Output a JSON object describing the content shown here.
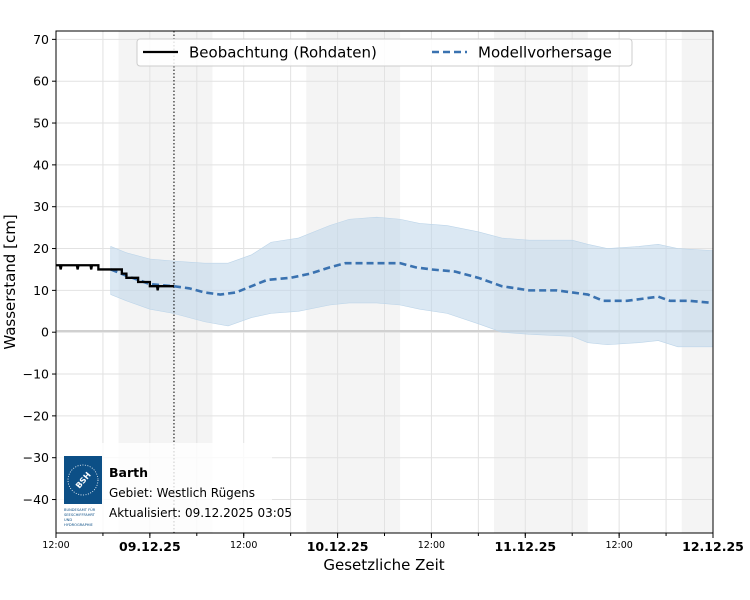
{
  "chart_data": {
    "type": "line",
    "xlabel": "Gesetzliche Zeit",
    "ylabel": "Wasserstand [cm]",
    "xlim": [
      "2025-12-08T12:00",
      "2025-12-12T00:00"
    ],
    "ylim": [
      -48,
      72
    ],
    "yticks": [
      -40,
      -30,
      -20,
      -10,
      0,
      10,
      20,
      30,
      40,
      50,
      60,
      70
    ],
    "ytick_labels": [
      "−40",
      "−30",
      "−20",
      "−10",
      "0",
      "10",
      "20",
      "30",
      "40",
      "50",
      "60",
      "70"
    ],
    "xticks": [
      {
        "t": "2025-12-08T12:00",
        "label": "12:00",
        "bold": false
      },
      {
        "t": "2025-12-09T00:00",
        "label": "09.12.25",
        "bold": true
      },
      {
        "t": "2025-12-09T12:00",
        "label": "12:00",
        "bold": false
      },
      {
        "t": "2025-12-10T00:00",
        "label": "10.12.25",
        "bold": true
      },
      {
        "t": "2025-12-10T12:00",
        "label": "12:00",
        "bold": false
      },
      {
        "t": "2025-12-11T00:00",
        "label": "11.12.25",
        "bold": true
      },
      {
        "t": "2025-12-11T12:00",
        "label": "12:00",
        "bold": false
      },
      {
        "t": "2025-12-12T00:00",
        "label": "12.12.25",
        "bold": true
      }
    ],
    "grid": true,
    "legend_position": "top-center",
    "night_bands": [
      [
        "2025-12-08T20:00",
        "2025-12-09T08:00"
      ],
      [
        "2025-12-09T20:00",
        "2025-12-10T08:00"
      ],
      [
        "2025-12-10T20:00",
        "2025-12-11T08:00"
      ],
      [
        "2025-12-11T20:00",
        "2025-12-12T00:00"
      ]
    ],
    "current_time": "2025-12-09T03:05",
    "colors": {
      "observation": "#000000",
      "forecast": "#3a72b0",
      "band": "#bdd5e9",
      "night": "#f4f4f4"
    },
    "series": [
      {
        "name": "Beobachtung (Rohdaten)",
        "style": "solid",
        "points": [
          [
            "2025-12-08T12:00",
            16
          ],
          [
            "2025-12-08T12:30",
            16
          ],
          [
            "2025-12-08T12:36",
            15
          ],
          [
            "2025-12-08T12:42",
            16
          ],
          [
            "2025-12-08T14:40",
            16
          ],
          [
            "2025-12-08T14:46",
            15
          ],
          [
            "2025-12-08T14:52",
            16
          ],
          [
            "2025-12-08T16:25",
            16
          ],
          [
            "2025-12-08T16:30",
            15
          ],
          [
            "2025-12-08T16:36",
            16
          ],
          [
            "2025-12-08T17:25",
            16
          ],
          [
            "2025-12-08T17:25",
            15
          ],
          [
            "2025-12-08T20:25",
            15
          ],
          [
            "2025-12-08T20:25",
            14
          ],
          [
            "2025-12-08T21:00",
            14
          ],
          [
            "2025-12-08T21:00",
            13
          ],
          [
            "2025-12-08T22:30",
            13
          ],
          [
            "2025-12-08T22:30",
            12
          ],
          [
            "2025-12-09T00:00",
            12
          ],
          [
            "2025-12-09T00:00",
            11
          ],
          [
            "2025-12-09T00:55",
            11
          ],
          [
            "2025-12-09T01:00",
            10
          ],
          [
            "2025-12-09T01:05",
            11
          ],
          [
            "2025-12-09T03:05",
            11
          ]
        ]
      },
      {
        "name": "Modellvorhersage",
        "style": "dashed",
        "points": [
          [
            "2025-12-08T19:00",
            15
          ],
          [
            "2025-12-08T21:00",
            13.5
          ],
          [
            "2025-12-09T00:00",
            11.5
          ],
          [
            "2025-12-09T03:00",
            11
          ],
          [
            "2025-12-09T05:00",
            10.5
          ],
          [
            "2025-12-09T07:00",
            9.5
          ],
          [
            "2025-12-09T09:00",
            9
          ],
          [
            "2025-12-09T11:00",
            9.5
          ],
          [
            "2025-12-09T13:00",
            11
          ],
          [
            "2025-12-09T15:00",
            12.5
          ],
          [
            "2025-12-09T18:00",
            13
          ],
          [
            "2025-12-09T20:30",
            14
          ],
          [
            "2025-12-09T23:00",
            15.5
          ],
          [
            "2025-12-10T01:00",
            16.5
          ],
          [
            "2025-12-10T03:00",
            16.5
          ],
          [
            "2025-12-10T06:00",
            16.5
          ],
          [
            "2025-12-10T08:00",
            16.5
          ],
          [
            "2025-12-10T10:00",
            15.5
          ],
          [
            "2025-12-10T12:00",
            15
          ],
          [
            "2025-12-10T15:00",
            14.5
          ],
          [
            "2025-12-10T18:00",
            13
          ],
          [
            "2025-12-10T21:00",
            11
          ],
          [
            "2025-12-11T00:30",
            10
          ],
          [
            "2025-12-11T04:00",
            10
          ],
          [
            "2025-12-11T06:00",
            9.5
          ],
          [
            "2025-12-11T08:00",
            9
          ],
          [
            "2025-12-11T10:00",
            7.5
          ],
          [
            "2025-12-11T13:00",
            7.5
          ],
          [
            "2025-12-11T15:00",
            8
          ],
          [
            "2025-12-11T17:00",
            8.5
          ],
          [
            "2025-12-11T18:30",
            7.5
          ],
          [
            "2025-12-11T21:00",
            7.5
          ],
          [
            "2025-12-12T00:00",
            7
          ]
        ]
      }
    ],
    "uncertainty_band": {
      "x": [
        "2025-12-08T19:00",
        "2025-12-08T21:00",
        "2025-12-09T00:00",
        "2025-12-09T03:00",
        "2025-12-09T07:00",
        "2025-12-09T10:00",
        "2025-12-09T13:00",
        "2025-12-09T15:30",
        "2025-12-09T19:00",
        "2025-12-09T23:00",
        "2025-12-10T01:30",
        "2025-12-10T05:00",
        "2025-12-10T08:00",
        "2025-12-10T10:30",
        "2025-12-10T14:00",
        "2025-12-10T18:00",
        "2025-12-10T21:00",
        "2025-12-11T00:30",
        "2025-12-11T06:00",
        "2025-12-11T08:00",
        "2025-12-11T10:30",
        "2025-12-11T14:30",
        "2025-12-11T17:00",
        "2025-12-11T19:30",
        "2025-12-12T00:00"
      ],
      "upper": [
        20.5,
        19,
        17.5,
        17,
        16.5,
        16.5,
        18.5,
        21.5,
        22.5,
        25.5,
        27,
        27.5,
        27,
        26,
        25.5,
        24,
        22.5,
        22,
        22,
        21,
        20,
        20.5,
        21,
        20,
        19.5
      ],
      "lower": [
        9,
        7.5,
        5.5,
        4.5,
        2.5,
        1.5,
        3.5,
        4.5,
        5,
        6.5,
        7,
        7,
        6.5,
        5.5,
        4.5,
        2,
        0,
        -0.5,
        -1,
        -2.5,
        -3,
        -2.5,
        -2,
        -3.5,
        -3.5
      ]
    }
  },
  "info": {
    "station": "Barth",
    "area": "Gebiet: Westlich Rügens",
    "updated": "Aktualisiert: 09.12.2025 03:05",
    "logo_text": "BSH",
    "logo_caption": "BUNDESAMT FÜR SEESCHIFFFAHRT UND HYDROGRAPHIE"
  }
}
